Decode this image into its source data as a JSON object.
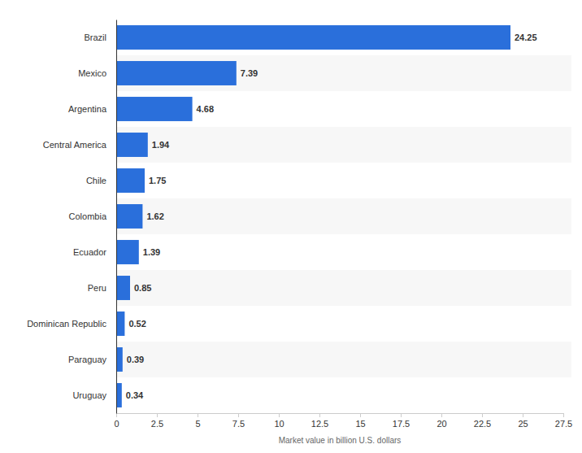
{
  "chart_data": {
    "type": "bar",
    "orientation": "horizontal",
    "x_label": "Market value in billion U.S. dollars",
    "categories": [
      "Brazil",
      "Mexico",
      "Argentina",
      "Central America",
      "Chile",
      "Colombia",
      "Ecuador",
      "Peru",
      "Dominican Republic",
      "Paraguay",
      "Uruguay"
    ],
    "values": [
      24.25,
      7.39,
      4.68,
      1.94,
      1.75,
      1.62,
      1.39,
      0.85,
      0.52,
      0.39,
      0.34
    ],
    "color": "#2a6fdb",
    "xlim": [
      0,
      27.5
    ],
    "xticks": [
      0,
      2.5,
      5,
      7.5,
      10,
      12.5,
      15,
      17.5,
      20,
      22.5,
      25,
      27.5
    ],
    "grid": false,
    "data_labels": true
  }
}
